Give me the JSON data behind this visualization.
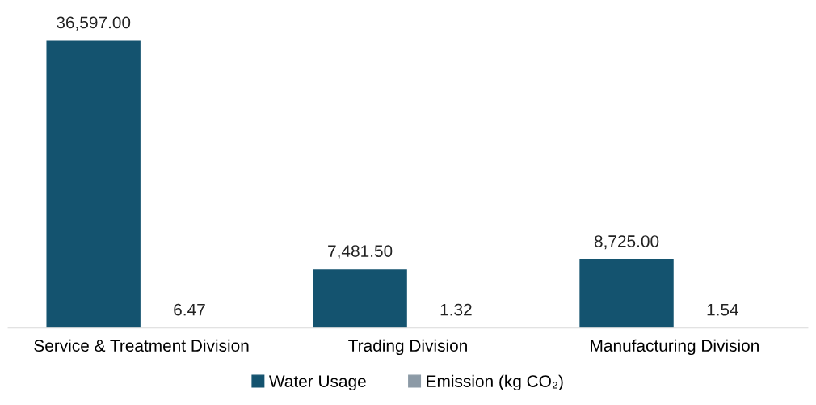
{
  "chart_data": {
    "type": "bar",
    "categories": [
      "Service & Treatment Division",
      "Trading Division",
      "Manufacturing Division"
    ],
    "series": [
      {
        "name": "Water Usage",
        "color": "#14536f",
        "values": [
          36597.0,
          7481.5,
          8725.0
        ],
        "value_labels": [
          "36,597.00",
          "7,481.50",
          "8,725.00"
        ]
      },
      {
        "name": "Emission (kg CO₂)",
        "color": "#8c9aa6",
        "values": [
          6.47,
          1.32,
          1.54
        ],
        "value_labels": [
          "6.47",
          "1.32",
          "1.54"
        ]
      }
    ],
    "legend": "bottom",
    "grid": false
  }
}
